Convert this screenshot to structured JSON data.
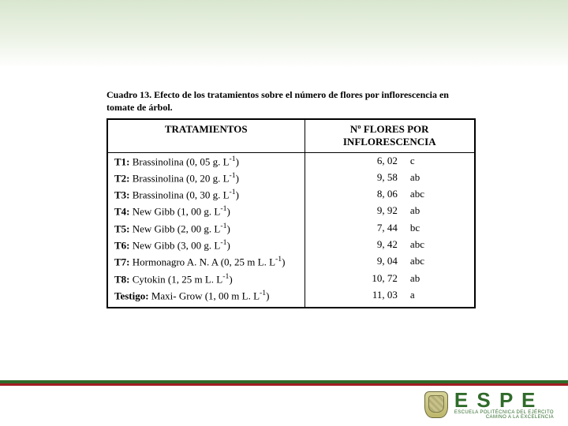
{
  "caption": "Cuadro 13. Efecto de los tratamientos sobre el número de flores por inflorescencia en tomate de árbol.",
  "table": {
    "header_col1": "TRATAMIENTOS",
    "header_col2_line1": "Nº FLORES POR",
    "header_col2_line2": "INFLORESCENCIA",
    "rows": [
      {
        "code": "T1:",
        "desc_pre": "Brassinolina (0, 05 g. L",
        "desc_suf": ")",
        "value": "6, 02",
        "group": "c"
      },
      {
        "code": "T2:",
        "desc_pre": "Brassinolina (0, 20 g. L",
        "desc_suf": ")",
        "value": "9, 58",
        "group": "ab"
      },
      {
        "code": "T3:",
        "desc_pre": "Brassinolina (0, 30 g. L",
        "desc_suf": ")",
        "value": "8, 06",
        "group": "abc"
      },
      {
        "code": "T4:",
        "desc_pre": "New Gibb (1, 00 g. L",
        "desc_suf": ")",
        "value": "9, 92",
        "group": "ab"
      },
      {
        "code": "T5:",
        "desc_pre": "New Gibb (2, 00 g. L",
        "desc_suf": ")",
        "value": "7, 44",
        "group": "bc"
      },
      {
        "code": "T6:",
        "desc_pre": "New Gibb (3, 00 g. L",
        "desc_suf": ")",
        "value": "9, 42",
        "group": "abc"
      },
      {
        "code": "T7:",
        "desc_pre": "Hormonagro A. N. A (0, 25 m L. L",
        "desc_suf": ")",
        "value": "9, 04",
        "group": "abc"
      },
      {
        "code": "T8:",
        "desc_pre": "Cytokin (1, 25 m L. L",
        "desc_suf": ")",
        "value": "10, 72",
        "group": "ab"
      },
      {
        "code": "Testigo:",
        "desc_pre": "Maxi- Grow (1, 00 m L. L",
        "desc_suf": ")",
        "value": "11, 03",
        "group": "a"
      }
    ]
  },
  "logo": {
    "big": "E S P E",
    "sub1": "ESCUELA POLITÉCNICA DEL EJÉRCITO",
    "sub2": "CAMINO A LA EXCELENCIA"
  },
  "colors": {
    "green": "#2f6b2a",
    "red": "#a11e23",
    "top_band_start": "#d9e6cf"
  }
}
